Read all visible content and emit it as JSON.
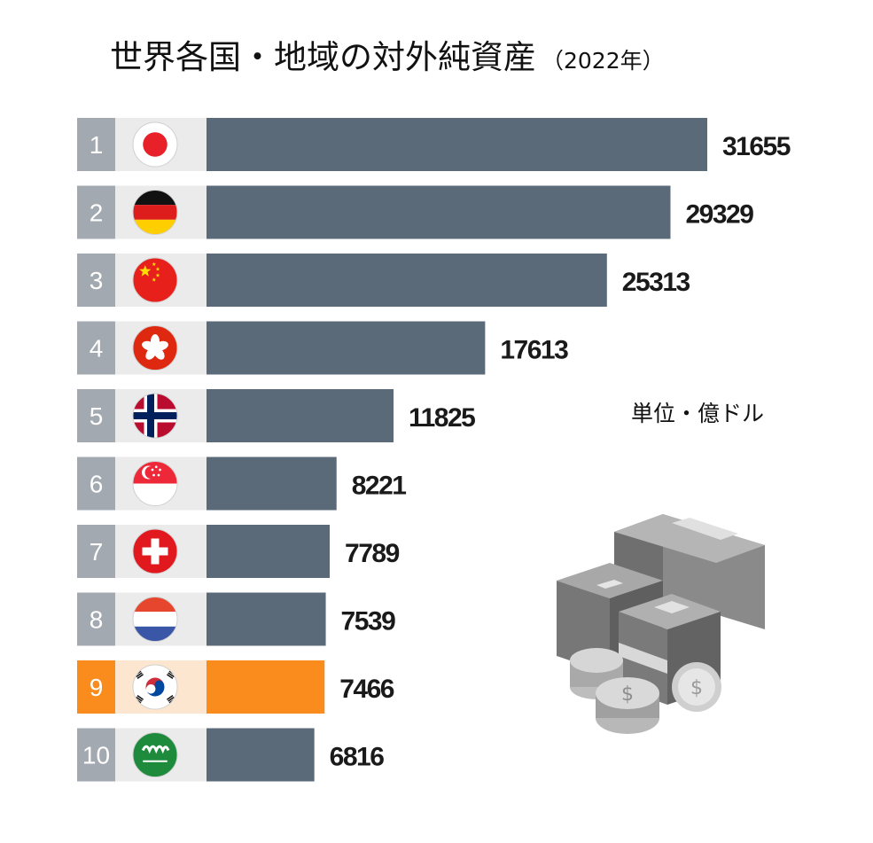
{
  "header": {
    "title": "世界各国・地域の対外純資産",
    "year": "（2022年）"
  },
  "unit_label": "単位・億ドル",
  "colors": {
    "bar": "#5b6a78",
    "highlight": "#f98c1c",
    "rank_box": "#a3a9b0",
    "row_bg": "#ebebeb",
    "highlight_bg": "#fde6d0"
  },
  "chart_data": {
    "type": "bar",
    "orientation": "horizontal",
    "title": "世界各国・地域の対外純資産",
    "subtitle": "（2022年）",
    "unit": "単位・億ドル",
    "categories": [
      "1",
      "2",
      "3",
      "4",
      "5",
      "6",
      "7",
      "8",
      "9",
      "10"
    ],
    "flags": [
      "japan-flag",
      "germany-flag",
      "china-flag",
      "hong-kong-flag",
      "norway-flag",
      "singapore-flag",
      "switzerland-flag",
      "netherlands-flag",
      "south-korea-flag",
      "saudi-arabia-flag"
    ],
    "values": [
      31655,
      29329,
      25313,
      17613,
      11825,
      8221,
      7789,
      7539,
      7466,
      6816
    ],
    "highlight_index": 8,
    "grid": false,
    "legend": "none"
  }
}
